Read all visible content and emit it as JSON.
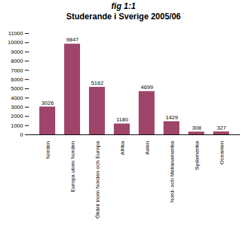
{
  "chart_data": {
    "type": "bar",
    "title": "fig 1:1",
    "subtitle": "Studerande i Sverige 2005/06",
    "categories": [
      "Norden",
      "Europa utom Norden",
      "Ökänt inom Norden och Europa",
      "Afrika",
      "Asien",
      "Nord- och Mellanamerika",
      "Sydamerika",
      "Oceanien"
    ],
    "values": [
      3026,
      9847,
      5162,
      1180,
      4699,
      1429,
      308,
      327
    ],
    "color": "#a0456a",
    "ylim": [
      0,
      11000
    ],
    "yticks": [
      0,
      1000,
      2000,
      3000,
      4000,
      5000,
      6000,
      7000,
      8000,
      9000,
      10000,
      11000
    ],
    "data_labels": true,
    "grid": false
  }
}
